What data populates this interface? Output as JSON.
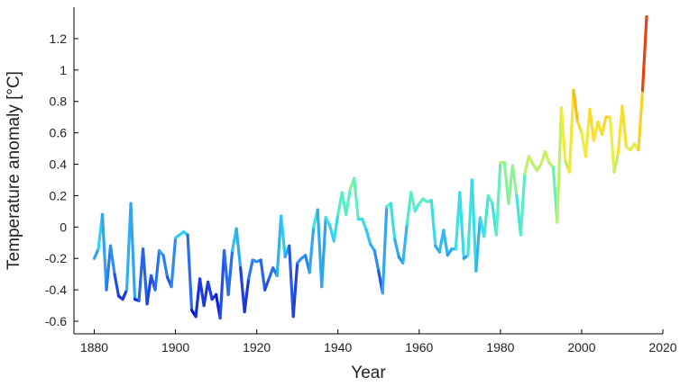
{
  "chart_data": {
    "type": "line",
    "title": "",
    "xlabel": "Year",
    "ylabel": "Temperature anomaly [°C]",
    "xlim": [
      1875,
      2020
    ],
    "ylim": [
      -0.68,
      1.4
    ],
    "grid": false,
    "colormap": [
      "#0000c8",
      "#1f3fe0",
      "#2f8ff0",
      "#32d8f0",
      "#60f0c0",
      "#b8f070",
      "#f5f038",
      "#ffb81c",
      "#ff7a10",
      "#e03010",
      "#b00000"
    ],
    "x_ticks": [
      1880,
      1900,
      1920,
      1940,
      1960,
      1980,
      2000,
      2020
    ],
    "x_tick_labels": [
      "1880",
      "1900",
      "1920",
      "1940",
      "1960",
      "1980",
      "2000",
      "2020"
    ],
    "y_ticks": [
      -0.6,
      -0.4,
      -0.2,
      0,
      0.2,
      0.4,
      0.6,
      0.8,
      1,
      1.2
    ],
    "y_tick_labels": [
      "-0.6",
      "-0.4",
      "-0.2",
      "0",
      "0.2",
      "0.4",
      "0.6",
      "0.8",
      "1",
      "1.2"
    ],
    "series": [
      {
        "x": [
          1880,
          1881,
          1882,
          1883,
          1884,
          1885,
          1886,
          1887,
          1888,
          1889,
          1890,
          1891,
          1892,
          1893,
          1894,
          1895,
          1896,
          1897,
          1898,
          1899,
          1900,
          1901,
          1902,
          1903,
          1904,
          1905,
          1906,
          1907,
          1908,
          1909,
          1910,
          1911,
          1912,
          1913,
          1914,
          1915,
          1916,
          1917,
          1918,
          1919,
          1920,
          1921,
          1922,
          1923,
          1924,
          1925,
          1926,
          1927,
          1928,
          1929,
          1930,
          1931,
          1932,
          1933,
          1934,
          1935,
          1936,
          1937,
          1938,
          1939,
          1940,
          1941,
          1942,
          1943,
          1944,
          1945,
          1946,
          1947,
          1948,
          1949,
          1950,
          1951,
          1952,
          1953,
          1954,
          1955,
          1956,
          1957,
          1958,
          1959,
          1960,
          1961,
          1962,
          1963,
          1964,
          1965,
          1966,
          1967,
          1968,
          1969,
          1970,
          1971,
          1972,
          1973,
          1974,
          1975,
          1976,
          1977,
          1978,
          1979,
          1980,
          1981,
          1982,
          1983,
          1984,
          1985,
          1986,
          1987,
          1988,
          1989,
          1990,
          1991,
          1992,
          1993,
          1994,
          1995,
          1996,
          1997,
          1998,
          1999,
          2000,
          2001,
          2002,
          2003,
          2004,
          2005,
          2006,
          2007,
          2008,
          2009,
          2010,
          2011,
          2012,
          2013,
          2014,
          2015,
          2016
        ],
        "y": [
          -0.2,
          -0.14,
          0.08,
          -0.4,
          -0.12,
          -0.3,
          -0.44,
          -0.46,
          -0.4,
          0.15,
          -0.46,
          -0.47,
          -0.14,
          -0.49,
          -0.31,
          -0.4,
          -0.15,
          -0.18,
          -0.32,
          -0.38,
          -0.07,
          -0.05,
          -0.03,
          -0.05,
          -0.53,
          -0.57,
          -0.33,
          -0.5,
          -0.35,
          -0.46,
          -0.43,
          -0.58,
          -0.15,
          -0.43,
          -0.15,
          -0.01,
          -0.26,
          -0.54,
          -0.33,
          -0.21,
          -0.22,
          -0.21,
          -0.4,
          -0.33,
          -0.26,
          -0.31,
          0.07,
          -0.19,
          -0.12,
          -0.57,
          -0.23,
          -0.2,
          -0.18,
          -0.29,
          0.0,
          0.11,
          -0.38,
          0.06,
          0.01,
          -0.09,
          0.08,
          0.22,
          0.08,
          0.24,
          0.31,
          0.05,
          0.05,
          -0.02,
          -0.11,
          -0.15,
          -0.28,
          -0.42,
          0.13,
          0.15,
          -0.08,
          -0.19,
          -0.23,
          0.02,
          0.22,
          0.1,
          0.15,
          0.18,
          0.16,
          0.17,
          -0.12,
          -0.16,
          -0.02,
          -0.18,
          -0.14,
          -0.14,
          0.22,
          -0.2,
          -0.18,
          0.3,
          -0.28,
          0.06,
          -0.06,
          0.2,
          0.15,
          -0.05,
          0.41,
          0.41,
          0.15,
          0.39,
          0.2,
          -0.05,
          0.34,
          0.45,
          0.4,
          0.36,
          0.4,
          0.48,
          0.41,
          0.38,
          0.03,
          0.76,
          0.42,
          0.35,
          0.87,
          0.67,
          0.6,
          0.45,
          0.75,
          0.55,
          0.67,
          0.59,
          0.7,
          0.7,
          0.35,
          0.47,
          0.77,
          0.51,
          0.49,
          0.53,
          0.49,
          0.87,
          1.34
        ]
      }
    ]
  }
}
